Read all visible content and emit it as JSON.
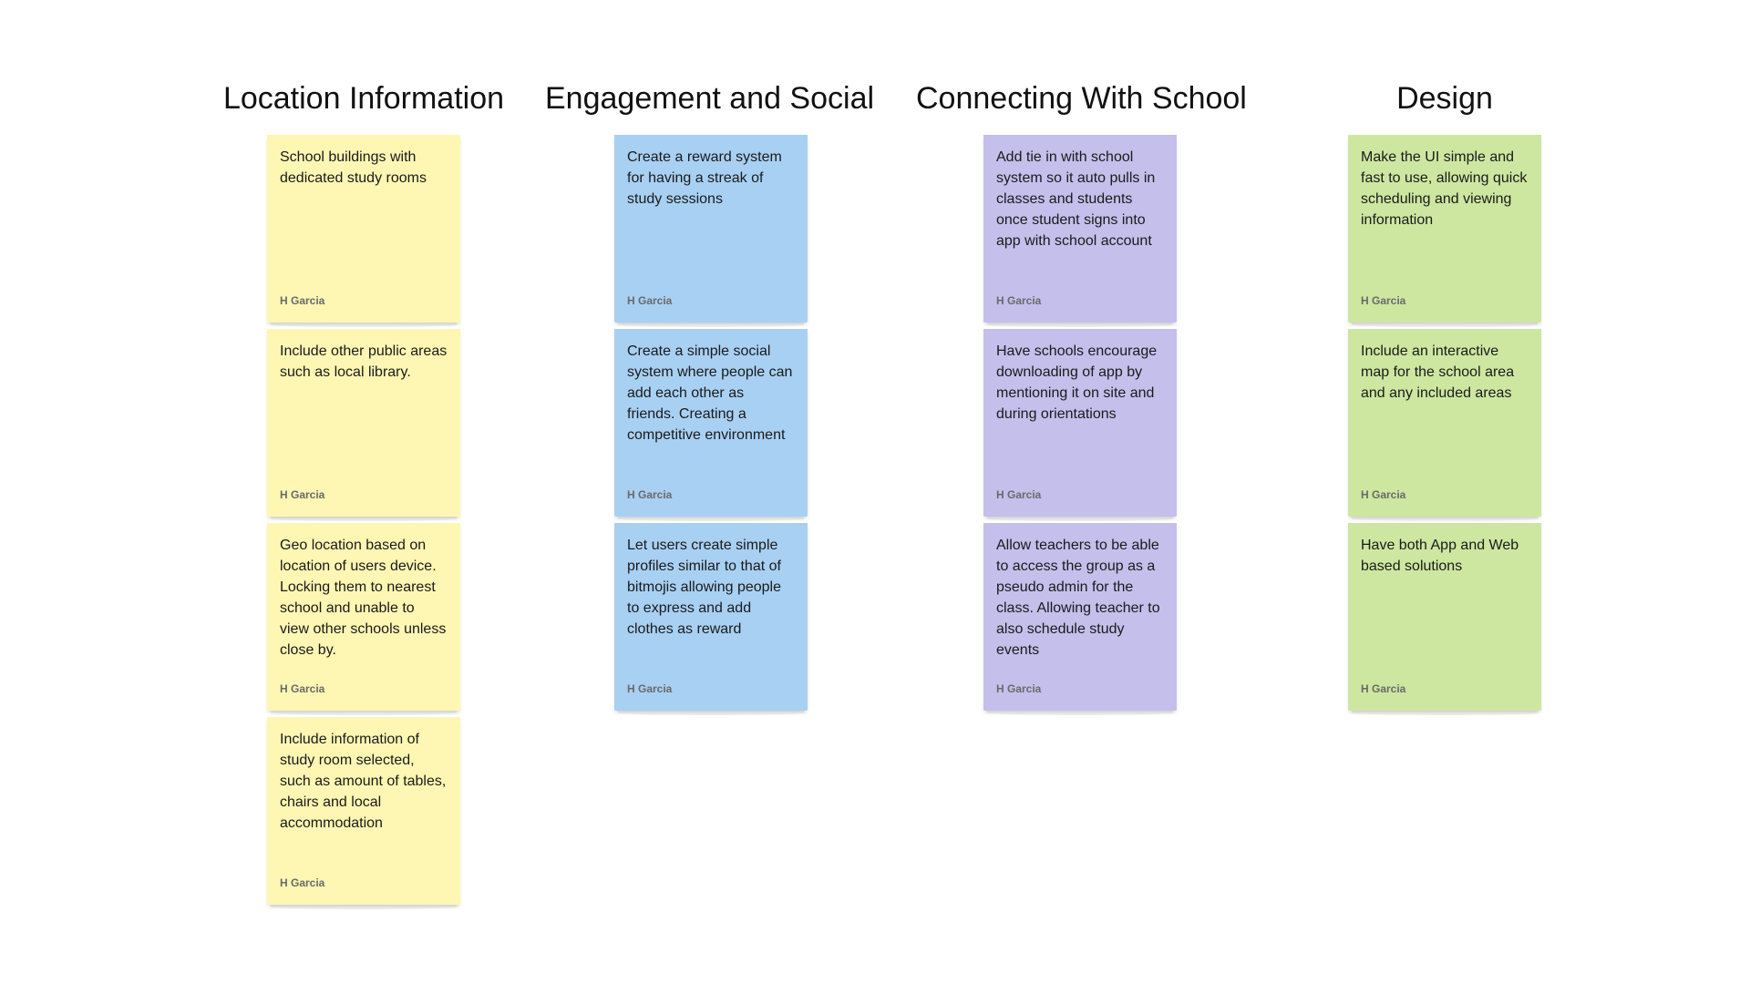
{
  "board": {
    "columns": [
      {
        "title": "Location Information",
        "color": "#fdf7b3",
        "notes": [
          {
            "text": "School buildings with dedicated study rooms",
            "author": "H Garcia"
          },
          {
            "text": "Include other public areas such as local library.",
            "author": "H Garcia"
          },
          {
            "text": "Geo location based on location of users device. Locking them to nearest school and unable to view other schools unless close by.",
            "author": "H Garcia"
          },
          {
            "text": "Include information of study room selected, such as amount of tables, chairs and local accommodation",
            "author": "H Garcia"
          }
        ]
      },
      {
        "title": "Engagement and Social",
        "color": "#a8d0f3",
        "notes": [
          {
            "text": "Create a reward system for having a streak of study sessions",
            "author": "H Garcia"
          },
          {
            "text": "Create a simple social system where people can add each other as friends. Creating a competitive environment",
            "author": "H Garcia"
          },
          {
            "text": "Let users create simple profiles similar to that of bitmojis allowing people to express and add clothes as reward",
            "author": "H Garcia"
          }
        ]
      },
      {
        "title": "Connecting With School",
        "color": "#c5bfec",
        "notes": [
          {
            "text": "Add tie in with school system so it auto pulls in classes and students once student signs into app with school account",
            "author": "H Garcia"
          },
          {
            "text": "Have schools encourage downloading of app by mentioning it on site and during orientations",
            "author": "H Garcia"
          },
          {
            "text": "Allow teachers to be able to access the group as a pseudo admin for the class. Allowing teacher to also schedule study events",
            "author": "H Garcia"
          }
        ]
      },
      {
        "title": "Design",
        "color": "#cde7a1",
        "notes": [
          {
            "text": "Make the UI simple and fast to use, allowing quick scheduling and viewing information",
            "author": "H Garcia"
          },
          {
            "text": "Include an interactive map for the school area and any included areas",
            "author": "H Garcia"
          },
          {
            "text": "Have both App and Web based solutions",
            "author": "H Garcia"
          }
        ]
      }
    ]
  }
}
